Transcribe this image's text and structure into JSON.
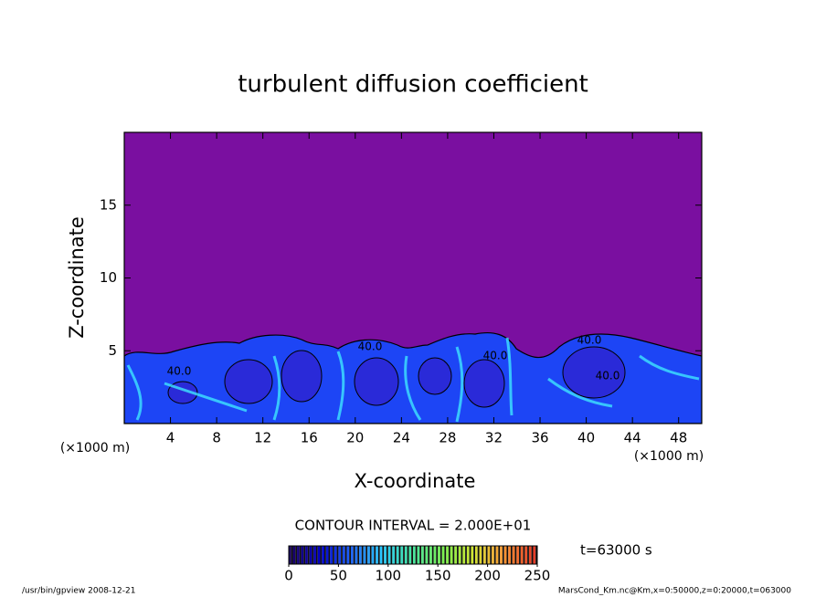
{
  "chart_data": {
    "type": "contour",
    "title": "turbulent diffusion coefficient",
    "xlabel": "X-coordinate",
    "ylabel": "Z-coordinate",
    "x_unit": "(×1000 m)",
    "y_unit": "(×1000 m)",
    "xlim": [
      0,
      50
    ],
    "xticks": [
      4,
      8,
      12,
      16,
      20,
      24,
      28,
      32,
      36,
      40,
      44,
      48
    ],
    "ylim": [
      0,
      20
    ],
    "yticks": [
      5,
      10,
      15
    ],
    "contour_labels": [
      "40.0",
      "40.0",
      "40.0",
      "40.0",
      "40.0"
    ],
    "contour_interval": "CONTOUR INTERVAL = 2.000E+01",
    "time_label": "t=63000 s",
    "colorbar": {
      "lim": [
        0,
        250
      ],
      "ticks": [
        0,
        50,
        100,
        150,
        200,
        250
      ],
      "colors": [
        "#1a0060",
        "#0000c8",
        "#1e64ff",
        "#28c8ff",
        "#46e6a0",
        "#78f050",
        "#d2e632",
        "#ff9632",
        "#e63c28"
      ]
    },
    "footer_left": "/usr/bin/gpview  2008-12-21",
    "footer_right": "MarsCond_Km.nc@Km,x=0:50000,z=0:20000,t=063000"
  }
}
